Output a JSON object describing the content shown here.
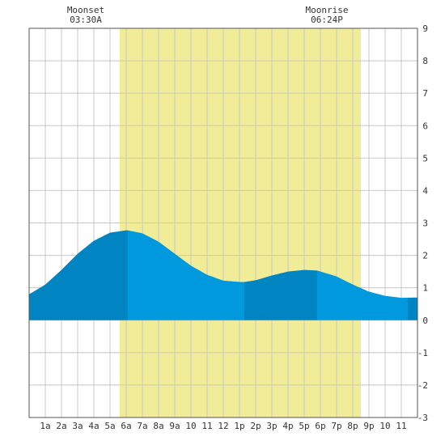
{
  "chart_data": {
    "type": "area",
    "x_unit": "hour of day",
    "xlim": [
      0,
      24
    ],
    "ylim": [
      -3,
      9
    ],
    "y_ticks": [
      -3,
      -2,
      -1,
      0,
      1,
      2,
      3,
      4,
      5,
      6,
      7,
      8,
      9
    ],
    "x_tick_labels": [
      {
        "hour": 1,
        "label": "1a"
      },
      {
        "hour": 2,
        "label": "2a"
      },
      {
        "hour": 3,
        "label": "3a"
      },
      {
        "hour": 4,
        "label": "4a"
      },
      {
        "hour": 5,
        "label": "5a"
      },
      {
        "hour": 6,
        "label": "6a"
      },
      {
        "hour": 7,
        "label": "7a"
      },
      {
        "hour": 8,
        "label": "8a"
      },
      {
        "hour": 9,
        "label": "9a"
      },
      {
        "hour": 10,
        "label": "10"
      },
      {
        "hour": 11,
        "label": "11"
      },
      {
        "hour": 12,
        "label": "12"
      },
      {
        "hour": 13,
        "label": "1p"
      },
      {
        "hour": 14,
        "label": "2p"
      },
      {
        "hour": 15,
        "label": "3p"
      },
      {
        "hour": 16,
        "label": "4p"
      },
      {
        "hour": 17,
        "label": "5p"
      },
      {
        "hour": 18,
        "label": "6p"
      },
      {
        "hour": 19,
        "label": "7p"
      },
      {
        "hour": 20,
        "label": "8p"
      },
      {
        "hour": 21,
        "label": "9p"
      },
      {
        "hour": 22,
        "label": "10"
      },
      {
        "hour": 23,
        "label": "11"
      }
    ],
    "grid": true,
    "daylight": {
      "start": 5.6,
      "end": 20.5
    },
    "events": [
      {
        "name": "Moonset",
        "time": "03:30A",
        "hour": 3.5
      },
      {
        "name": "Moonrise",
        "time": "06:24P",
        "hour": 18.4
      }
    ],
    "tide": {
      "x": [
        0,
        1,
        2,
        3,
        4,
        5,
        6,
        6.1,
        7,
        8,
        9,
        10,
        11,
        12,
        13,
        13.3,
        14,
        15,
        16,
        17,
        17.8,
        18,
        19,
        20,
        21,
        22,
        23,
        24
      ],
      "y": [
        0.8,
        1.1,
        1.55,
        2.05,
        2.45,
        2.7,
        2.77,
        2.77,
        2.68,
        2.42,
        2.05,
        1.68,
        1.4,
        1.22,
        1.18,
        1.18,
        1.23,
        1.38,
        1.5,
        1.55,
        1.53,
        1.5,
        1.35,
        1.1,
        0.88,
        0.75,
        0.69,
        0.7
      ]
    },
    "shading_segments": [
      {
        "from": 0,
        "to": 6.1,
        "shade": "dark"
      },
      {
        "from": 6.1,
        "to": 13.3,
        "shade": "light"
      },
      {
        "from": 13.3,
        "to": 17.8,
        "shade": "dark"
      },
      {
        "from": 17.8,
        "to": 23.4,
        "shade": "light"
      },
      {
        "from": 23.4,
        "to": 24,
        "shade": "dark"
      }
    ],
    "colors": {
      "daylight": "#f0ec98",
      "tide_light": "#0099dd",
      "tide_dark": "#0084c2",
      "grid": "#c8c8c8",
      "border": "#555555",
      "background": "#ffffff"
    }
  }
}
